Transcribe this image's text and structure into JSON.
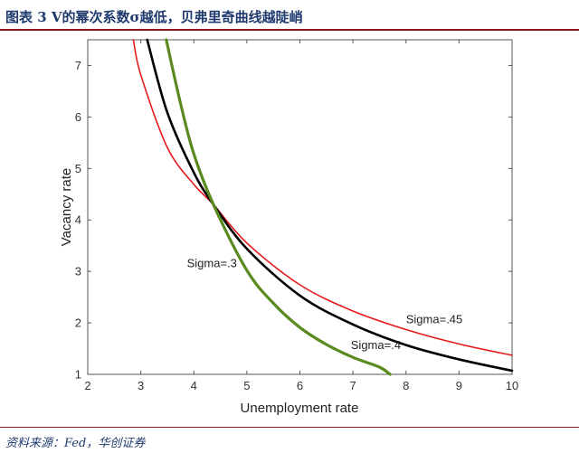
{
  "figure": {
    "title": "图表 3   V的幂次系数σ越低，贝弗里奇曲线越陡峭",
    "source": "资料来源：Fed，华创证券"
  },
  "chart_data": {
    "type": "line",
    "title": "",
    "xlabel": "Unemployment rate",
    "ylabel": "Vacancy rate",
    "xlim": [
      2,
      10
    ],
    "ylim": [
      1,
      7.5
    ],
    "xticks": [
      "2",
      "3",
      "4",
      "5",
      "6",
      "7",
      "8",
      "9",
      "10"
    ],
    "yticks": [
      "1",
      "2",
      "3",
      "4",
      "5",
      "6",
      "7"
    ],
    "grid": false,
    "legend": "none",
    "series": [
      {
        "name": "Sigma=.45",
        "color": "#e41a1c",
        "x": [
          2.86,
          3.0,
          3.5,
          4.0,
          4.37,
          5.0,
          6.0,
          7.0,
          8.0,
          9.0,
          10.0
        ],
        "y": [
          7.5,
          6.82,
          5.41,
          4.69,
          4.3,
          3.55,
          2.74,
          2.23,
          1.87,
          1.59,
          1.37
        ]
      },
      {
        "name": "Sigma=.4",
        "color": "#000000",
        "x": [
          3.12,
          3.5,
          4.0,
          4.37,
          5.0,
          6.0,
          7.0,
          8.0,
          9.0,
          10.0
        ],
        "y": [
          7.5,
          6.09,
          4.92,
          4.3,
          3.44,
          2.53,
          1.97,
          1.57,
          1.29,
          1.07
        ]
      },
      {
        "name": "Sigma=.3",
        "color": "#5a8a1f",
        "x": [
          3.48,
          3.75,
          4.0,
          4.37,
          5.0,
          5.5,
          6.0,
          6.5,
          7.0,
          7.5,
          7.7
        ],
        "y": [
          7.5,
          6.26,
          5.28,
          4.3,
          3.02,
          2.38,
          1.91,
          1.58,
          1.33,
          1.14,
          1.0
        ]
      }
    ],
    "annotations": [
      {
        "text": "Sigma=.45",
        "x": 8.0,
        "y": 1.99
      },
      {
        "text": "Sigma=.4",
        "x": 6.96,
        "y": 1.49
      },
      {
        "text": "Sigma=.3",
        "x": 3.87,
        "y": 3.08
      }
    ]
  }
}
